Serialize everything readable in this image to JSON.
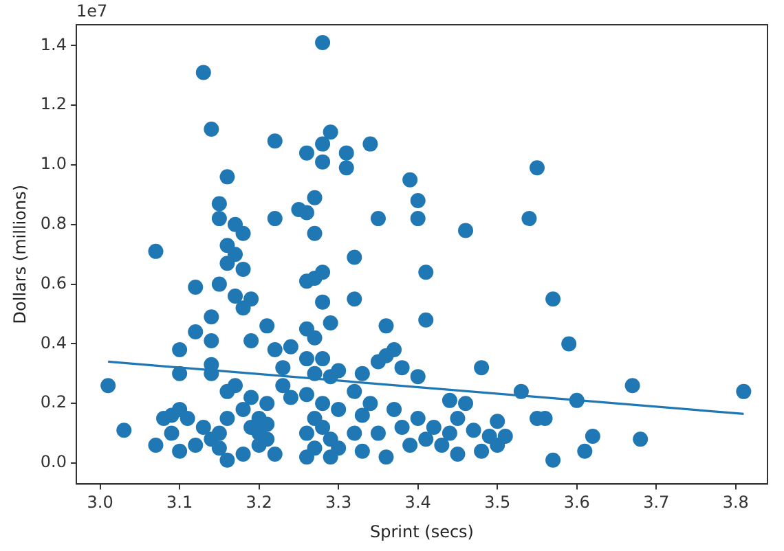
{
  "chart_data": {
    "type": "scatter",
    "xlabel": "Sprint (secs)",
    "ylabel": "Dollars (millions)",
    "annotations": [
      "1e7"
    ],
    "xlim": [
      2.97,
      3.84
    ],
    "xticks": [
      {
        "value": 3.0,
        "label": "3.0"
      },
      3.1,
      3.2,
      3.3,
      3.4,
      3.5,
      3.6,
      3.7,
      3.8
    ],
    "ylim": [
      -0.07,
      1.47
    ],
    "yticks": [
      {
        "value": 0,
        "label": "0.0"
      },
      0.2,
      0.4,
      0.6,
      0.8,
      {
        "value": 1.0,
        "label": "1.0"
      },
      1.2,
      1.4
    ],
    "grid": false,
    "legend": false,
    "marker": "circle",
    "series": [
      {
        "color": "#1f77b4",
        "x": [
          3.01,
          3.03,
          3.07,
          3.07,
          3.08,
          3.09,
          3.09,
          3.1,
          3.1,
          3.1,
          3.1,
          3.11,
          3.12,
          3.12,
          3.12,
          3.13,
          3.13,
          3.14,
          3.14,
          3.14,
          3.14,
          3.14,
          3.14,
          3.15,
          3.15,
          3.15,
          3.15,
          3.15,
          3.16,
          3.16,
          3.16,
          3.16,
          3.16,
          3.16,
          3.17,
          3.17,
          3.17,
          3.17,
          3.18,
          3.18,
          3.18,
          3.18,
          3.18,
          3.19,
          3.19,
          3.19,
          3.19,
          3.2,
          3.2,
          3.2,
          3.21,
          3.21,
          3.21,
          3.21,
          3.22,
          3.22,
          3.22,
          3.22,
          3.23,
          3.23,
          3.24,
          3.24,
          3.25,
          3.26,
          3.26,
          3.26,
          3.26,
          3.26,
          3.26,
          3.26,
          3.26,
          3.27,
          3.27,
          3.27,
          3.27,
          3.27,
          3.27,
          3.27,
          3.28,
          3.28,
          3.28,
          3.28,
          3.28,
          3.28,
          3.28,
          3.28,
          3.29,
          3.29,
          3.29,
          3.29,
          3.29,
          3.3,
          3.3,
          3.3,
          3.31,
          3.31,
          3.32,
          3.32,
          3.32,
          3.32,
          3.33,
          3.33,
          3.33,
          3.34,
          3.34,
          3.35,
          3.35,
          3.35,
          3.36,
          3.36,
          3.36,
          3.37,
          3.37,
          3.38,
          3.38,
          3.39,
          3.39,
          3.4,
          3.4,
          3.4,
          3.4,
          3.41,
          3.41,
          3.41,
          3.42,
          3.43,
          3.44,
          3.44,
          3.45,
          3.45,
          3.46,
          3.46,
          3.47,
          3.48,
          3.48,
          3.49,
          3.5,
          3.5,
          3.51,
          3.53,
          3.54,
          3.55,
          3.55,
          3.56,
          3.57,
          3.57,
          3.59,
          3.6,
          3.61,
          3.62,
          3.67,
          3.68,
          3.81
        ],
        "values": [
          0.26,
          0.11,
          0.71,
          0.06,
          0.15,
          0.16,
          0.1,
          0.38,
          0.3,
          0.18,
          0.04,
          0.15,
          0.59,
          0.44,
          0.06,
          1.31,
          0.12,
          1.12,
          0.49,
          0.41,
          0.33,
          0.3,
          0.08,
          0.1,
          0.05,
          0.6,
          0.87,
          0.82,
          0.96,
          0.73,
          0.67,
          0.24,
          0.15,
          0.01,
          0.8,
          0.7,
          0.56,
          0.26,
          0.77,
          0.65,
          0.52,
          0.18,
          0.03,
          0.55,
          0.41,
          0.22,
          0.12,
          0.1,
          0.15,
          0.06,
          0.46,
          0.2,
          0.13,
          0.08,
          0.82,
          1.08,
          0.38,
          0.03,
          0.32,
          0.26,
          0.39,
          0.22,
          0.85,
          0.84,
          1.04,
          0.61,
          0.45,
          0.35,
          0.23,
          0.1,
          0.02,
          0.89,
          0.77,
          0.62,
          0.42,
          0.3,
          0.15,
          0.05,
          1.41,
          1.07,
          1.01,
          0.64,
          0.54,
          0.35,
          0.2,
          0.12,
          1.11,
          0.47,
          0.29,
          0.08,
          0.02,
          0.31,
          0.18,
          0.05,
          1.04,
          0.99,
          0.69,
          0.55,
          0.24,
          0.1,
          0.3,
          0.16,
          0.04,
          1.07,
          0.2,
          0.82,
          0.34,
          0.1,
          0.46,
          0.36,
          0.02,
          0.38,
          0.18,
          0.32,
          0.12,
          0.95,
          0.06,
          0.88,
          0.82,
          0.29,
          0.15,
          0.64,
          0.48,
          0.08,
          0.12,
          0.06,
          0.21,
          0.1,
          0.03,
          0.15,
          0.2,
          0.78,
          0.11,
          0.32,
          0.04,
          0.09,
          0.14,
          0.06,
          0.09,
          0.24,
          0.82,
          0.99,
          0.15,
          0.15,
          0.55,
          0.01,
          0.4,
          0.21,
          0.04,
          0.09,
          0.26,
          0.08,
          0.24
        ]
      },
      {
        "type": "line",
        "color": "#1f77b4",
        "marker": "none",
        "x": [
          3.01,
          3.81
        ],
        "values": [
          0.34,
          0.165
        ]
      }
    ]
  }
}
